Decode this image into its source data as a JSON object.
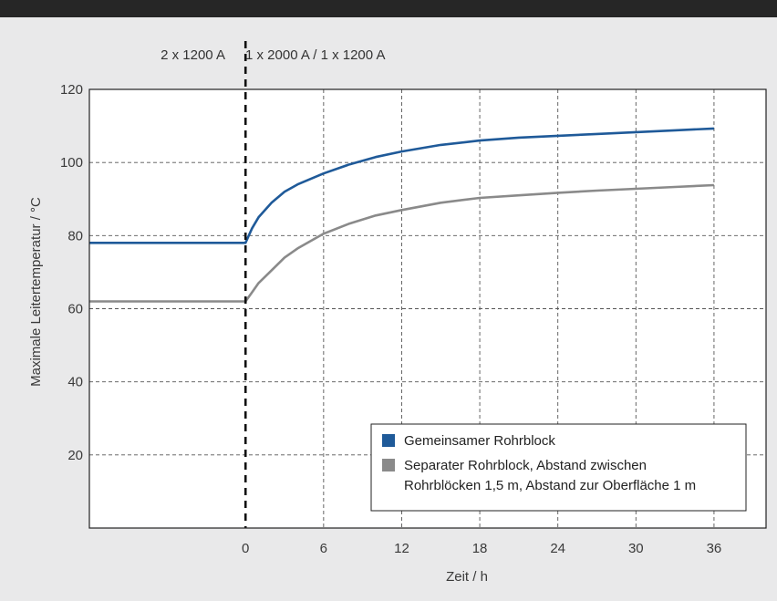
{
  "chart_data": {
    "type": "line",
    "xlabel": "Zeit / h",
    "ylabel": "Maximale Leitertemperatur / °C",
    "xlim": [
      -12,
      40
    ],
    "ylim": [
      0,
      120
    ],
    "xticks": [
      0,
      6,
      12,
      18,
      24,
      30,
      36
    ],
    "yticks": [
      20,
      40,
      60,
      80,
      100,
      120
    ],
    "grid": true,
    "legend_position": "bottom-right",
    "phase_labels": {
      "before": "2 x 1200 A",
      "after": "1 x 2000 A / 1 x 1200 A"
    },
    "series": [
      {
        "name": "Gemeinsamer Rohrblock",
        "color": "#1f5a99",
        "x": [
          -12,
          0,
          0.5,
          1,
          2,
          3,
          4,
          6,
          8,
          10,
          12,
          15,
          18,
          21,
          24,
          27,
          30,
          33,
          36
        ],
        "y": [
          78,
          78,
          82,
          85,
          89,
          92,
          94,
          97,
          99.5,
          101.5,
          103,
          104.8,
          106,
          106.8,
          107.3,
          107.8,
          108.3,
          108.8,
          109.3
        ]
      },
      {
        "name": "Separater Rohrblock, Abstand zwischen Rohrblöcken 1,5 m, Abstand zur Oberfläche 1 m",
        "color": "#8a8a8a",
        "x": [
          -12,
          0,
          0.5,
          1,
          2,
          3,
          4,
          6,
          8,
          10,
          12,
          15,
          18,
          21,
          24,
          27,
          30,
          33,
          36
        ],
        "y": [
          62,
          62,
          64.5,
          67,
          70.5,
          74,
          76.5,
          80.5,
          83.3,
          85.5,
          87,
          89,
          90.3,
          91,
          91.7,
          92.3,
          92.8,
          93.3,
          93.8
        ]
      }
    ]
  }
}
